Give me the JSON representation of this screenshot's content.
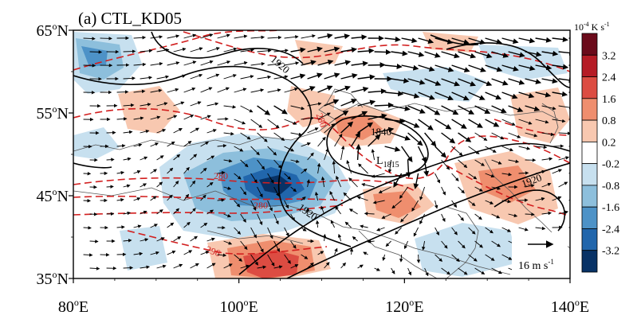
{
  "panel_title": "(a) CTL_KD05",
  "axes": {
    "x_ticks": [
      {
        "value": 80,
        "label_main": "80",
        "label_sup": "o",
        "label_end": "E"
      },
      {
        "value": 100,
        "label_main": "100",
        "label_sup": "o",
        "label_end": "E"
      },
      {
        "value": 120,
        "label_main": "120",
        "label_sup": "o",
        "label_end": "E"
      },
      {
        "value": 140,
        "label_main": "140",
        "label_sup": "o",
        "label_end": "E"
      }
    ],
    "y_ticks": [
      {
        "value": 65,
        "label_main": "65",
        "label_sup": "o",
        "label_end": "N"
      },
      {
        "value": 55,
        "label_main": "55",
        "label_sup": "o",
        "label_end": "N"
      },
      {
        "value": 45,
        "label_main": "45",
        "label_sup": "o",
        "label_end": "N"
      },
      {
        "value": 35,
        "label_main": "35",
        "label_sup": "o",
        "label_end": "N"
      }
    ],
    "lon_range": [
      80,
      140
    ],
    "lat_range": [
      35,
      65
    ]
  },
  "colorbar": {
    "unit_base": "10",
    "unit_exp": "-4",
    "unit_rest": " K s",
    "unit_exp2": "-1",
    "labels": [
      "3.2",
      "2.4",
      "1.6",
      "0.8",
      "0.2",
      "-0.2",
      "-0.8",
      "-1.6",
      "-2.4",
      "-3.2"
    ],
    "colors": [
      "#6b0a1a",
      "#b51b25",
      "#dc4c42",
      "#ef8e6e",
      "#f8c8b0",
      "#ffffff",
      "#c7e0ef",
      "#8dbfdc",
      "#4d92c7",
      "#2166ac",
      "#083266"
    ]
  },
  "reference_vector": {
    "label_main": "16 m s",
    "label_sup": "-1"
  },
  "contour_labels": {
    "solid": [
      "1920",
      "1840",
      "1920",
      "1920"
    ],
    "dashed": [
      "280",
      "280",
      "280",
      "296"
    ],
    "low_center": {
      "letter": "L",
      "value": "1815"
    }
  },
  "colors": {
    "dashed_contour": "#d21f1f",
    "solid_contour": "#000000",
    "coast": "#555555"
  }
}
